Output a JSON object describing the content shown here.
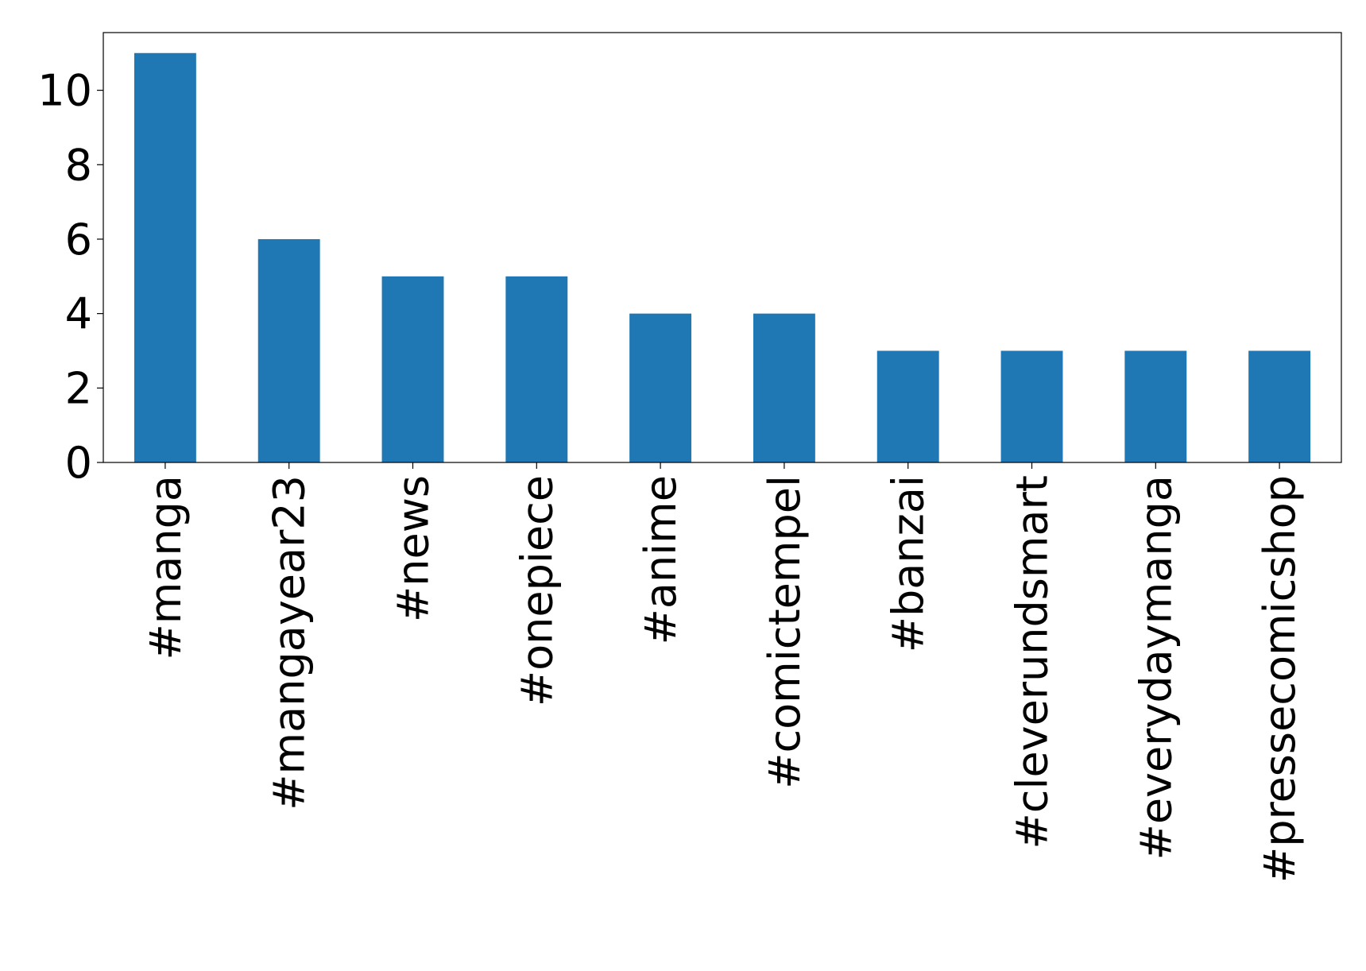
{
  "chart_data": {
    "type": "bar",
    "categories": [
      "#manga",
      "#mangayear23",
      "#news",
      "#onepiece",
      "#anime",
      "#comictempel",
      "#banzai",
      "#cleverundsmart",
      "#everydaymanga",
      "#pressecomicshop"
    ],
    "values": [
      11,
      6,
      5,
      5,
      4,
      4,
      3,
      3,
      3,
      3
    ],
    "color": "#1f77b4",
    "ylim": [
      0,
      11.55
    ],
    "yticks": [
      0,
      2,
      4,
      6,
      8,
      10
    ],
    "grid": false
  }
}
